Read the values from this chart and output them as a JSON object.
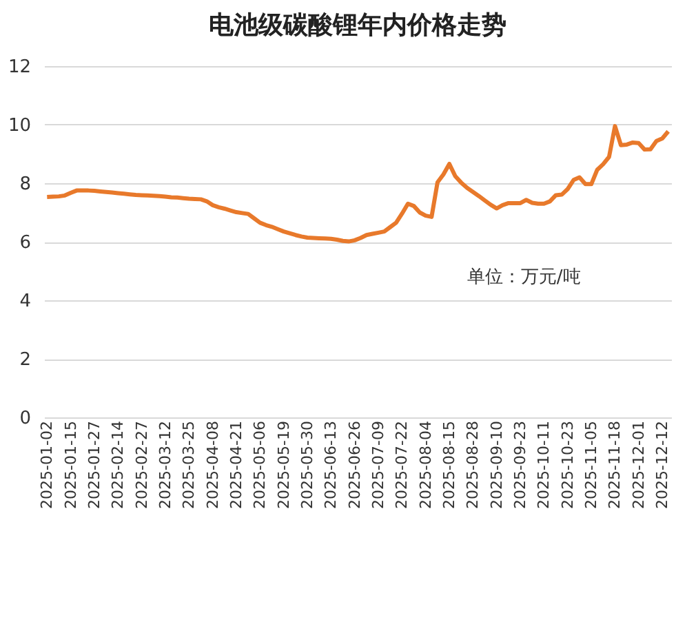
{
  "chart_data": {
    "type": "line",
    "title": "电池级碳酸锂年内价格走势",
    "categories": [
      "2025-01-02",
      null,
      null,
      null,
      "2025-01-15",
      null,
      null,
      null,
      "2025-01-27",
      null,
      null,
      null,
      "2025-02-14",
      null,
      null,
      null,
      "2025-02-27",
      null,
      null,
      null,
      "2025-03-12",
      null,
      null,
      null,
      "2025-03-25",
      null,
      null,
      null,
      "2025-04-08",
      null,
      null,
      null,
      "2025-04-21",
      null,
      null,
      null,
      "2025-05-06",
      null,
      null,
      null,
      "2025-05-19",
      null,
      null,
      null,
      "2025-05-30",
      null,
      null,
      null,
      "2025-06-13",
      null,
      null,
      null,
      "2025-06-26",
      null,
      null,
      null,
      "2025-07-09",
      null,
      null,
      null,
      "2025-07-22",
      null,
      null,
      null,
      "2025-08-04",
      null,
      null,
      null,
      "2025-08-15",
      null,
      null,
      null,
      "2025-08-28",
      null,
      null,
      null,
      "2025-09-10",
      null,
      null,
      null,
      "2025-09-23",
      null,
      null,
      null,
      "2025-10-11",
      null,
      null,
      null,
      "2025-10-23",
      null,
      null,
      null,
      "2025-11-05",
      null,
      null,
      null,
      "2025-11-18",
      null,
      null,
      null,
      "2025-12-01",
      null,
      null,
      null,
      "2025-12-12",
      null
    ],
    "series": [
      {
        "color": "#e8792b",
        "values": [
          7.53,
          7.54,
          7.55,
          7.58,
          7.67,
          7.75,
          7.75,
          7.75,
          7.74,
          7.72,
          7.7,
          7.68,
          7.66,
          7.64,
          7.62,
          7.6,
          7.59,
          7.58,
          7.57,
          7.56,
          7.54,
          7.52,
          7.51,
          7.49,
          7.47,
          7.46,
          7.45,
          7.38,
          7.25,
          7.18,
          7.13,
          7.07,
          7.01,
          6.98,
          6.95,
          6.8,
          6.65,
          6.57,
          6.51,
          6.43,
          6.35,
          6.29,
          6.23,
          6.18,
          6.14,
          6.13,
          6.12,
          6.11,
          6.1,
          6.07,
          6.03,
          6.01,
          6.05,
          6.13,
          6.23,
          6.27,
          6.31,
          6.35,
          6.5,
          6.65,
          6.96,
          7.3,
          7.22,
          7.0,
          6.89,
          6.85,
          8.03,
          8.3,
          8.66,
          8.24,
          8.02,
          7.84,
          7.7,
          7.56,
          7.41,
          7.26,
          7.14,
          7.25,
          7.32,
          7.32,
          7.32,
          7.43,
          7.33,
          7.3,
          7.3,
          7.38,
          7.59,
          7.61,
          7.8,
          8.11,
          8.2,
          7.97,
          7.97,
          8.46,
          8.65,
          8.9,
          9.95,
          9.3,
          9.32,
          9.39,
          9.37,
          9.15,
          9.16,
          9.44,
          9.53,
          9.77
        ]
      }
    ],
    "ylim": [
      0,
      12
    ],
    "yticks": [
      0,
      2,
      4,
      6,
      8,
      10,
      12
    ],
    "grid": "y",
    "line_style": "solid",
    "marker": "none",
    "annotations": [
      "单位：万元/吨"
    ]
  }
}
